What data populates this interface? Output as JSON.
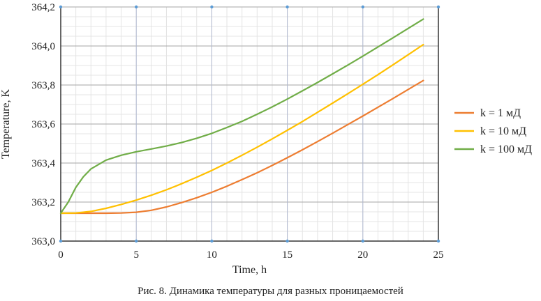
{
  "caption": "Рис. 8. Динамика температуры для разных проницаемостей",
  "chart_data": {
    "type": "line",
    "xlabel": "Time, h",
    "ylabel": "Temperature, K",
    "xlim": [
      0,
      25
    ],
    "ylim": [
      363.0,
      364.2
    ],
    "x_ticks": [
      0,
      5,
      10,
      15,
      20,
      25
    ],
    "x_tick_labels": [
      "0",
      "5",
      "10",
      "15",
      "20",
      "25"
    ],
    "y_ticks": [
      363.0,
      363.2,
      363.4,
      363.6,
      363.8,
      364.0,
      364.2
    ],
    "y_tick_labels": [
      "363,0",
      "363,2",
      "363,4",
      "363,6",
      "363,8",
      "364,0",
      "364,2"
    ],
    "grid": true,
    "legend_position": "right",
    "series": [
      {
        "name": "k = 1 мД",
        "color": "#ED7D31",
        "x": [
          0,
          1,
          2,
          3,
          4,
          5,
          6,
          7,
          8,
          9,
          10,
          11,
          12,
          13,
          14,
          15,
          16,
          17,
          18,
          19,
          20,
          21,
          22,
          23,
          24
        ],
        "y": [
          363.143,
          363.143,
          363.143,
          363.143,
          363.144,
          363.148,
          363.158,
          363.175,
          363.197,
          363.222,
          363.25,
          363.281,
          363.315,
          363.35,
          363.388,
          363.427,
          363.468,
          363.51,
          363.553,
          363.597,
          363.641,
          363.686,
          363.731,
          363.777,
          363.823
        ]
      },
      {
        "name": "k = 10 мД",
        "color": "#FFC000",
        "x": [
          0,
          1,
          2,
          3,
          4,
          5,
          6,
          7,
          8,
          9,
          10,
          11,
          12,
          13,
          14,
          15,
          16,
          17,
          18,
          19,
          20,
          21,
          22,
          23,
          24
        ],
        "y": [
          363.143,
          363.144,
          363.152,
          363.168,
          363.188,
          363.21,
          363.235,
          363.263,
          363.294,
          363.327,
          363.362,
          363.4,
          363.44,
          363.481,
          363.524,
          363.568,
          363.613,
          363.66,
          363.707,
          363.755,
          363.804,
          363.853,
          363.904,
          363.955,
          364.007
        ]
      },
      {
        "name": "k = 100 мД",
        "color": "#70AD47",
        "x": [
          0,
          0.5,
          1,
          1.5,
          2,
          3,
          4,
          5,
          6,
          7,
          8,
          9,
          10,
          11,
          12,
          13,
          14,
          15,
          16,
          17,
          18,
          19,
          20,
          21,
          22,
          23,
          24
        ],
        "y": [
          363.143,
          363.2,
          363.275,
          363.33,
          363.37,
          363.415,
          363.44,
          363.458,
          363.472,
          363.487,
          363.505,
          363.527,
          363.552,
          363.582,
          363.614,
          363.65,
          363.688,
          363.728,
          363.77,
          363.813,
          363.857,
          363.902,
          363.948,
          363.995,
          364.042,
          364.09,
          364.138
        ]
      }
    ]
  }
}
